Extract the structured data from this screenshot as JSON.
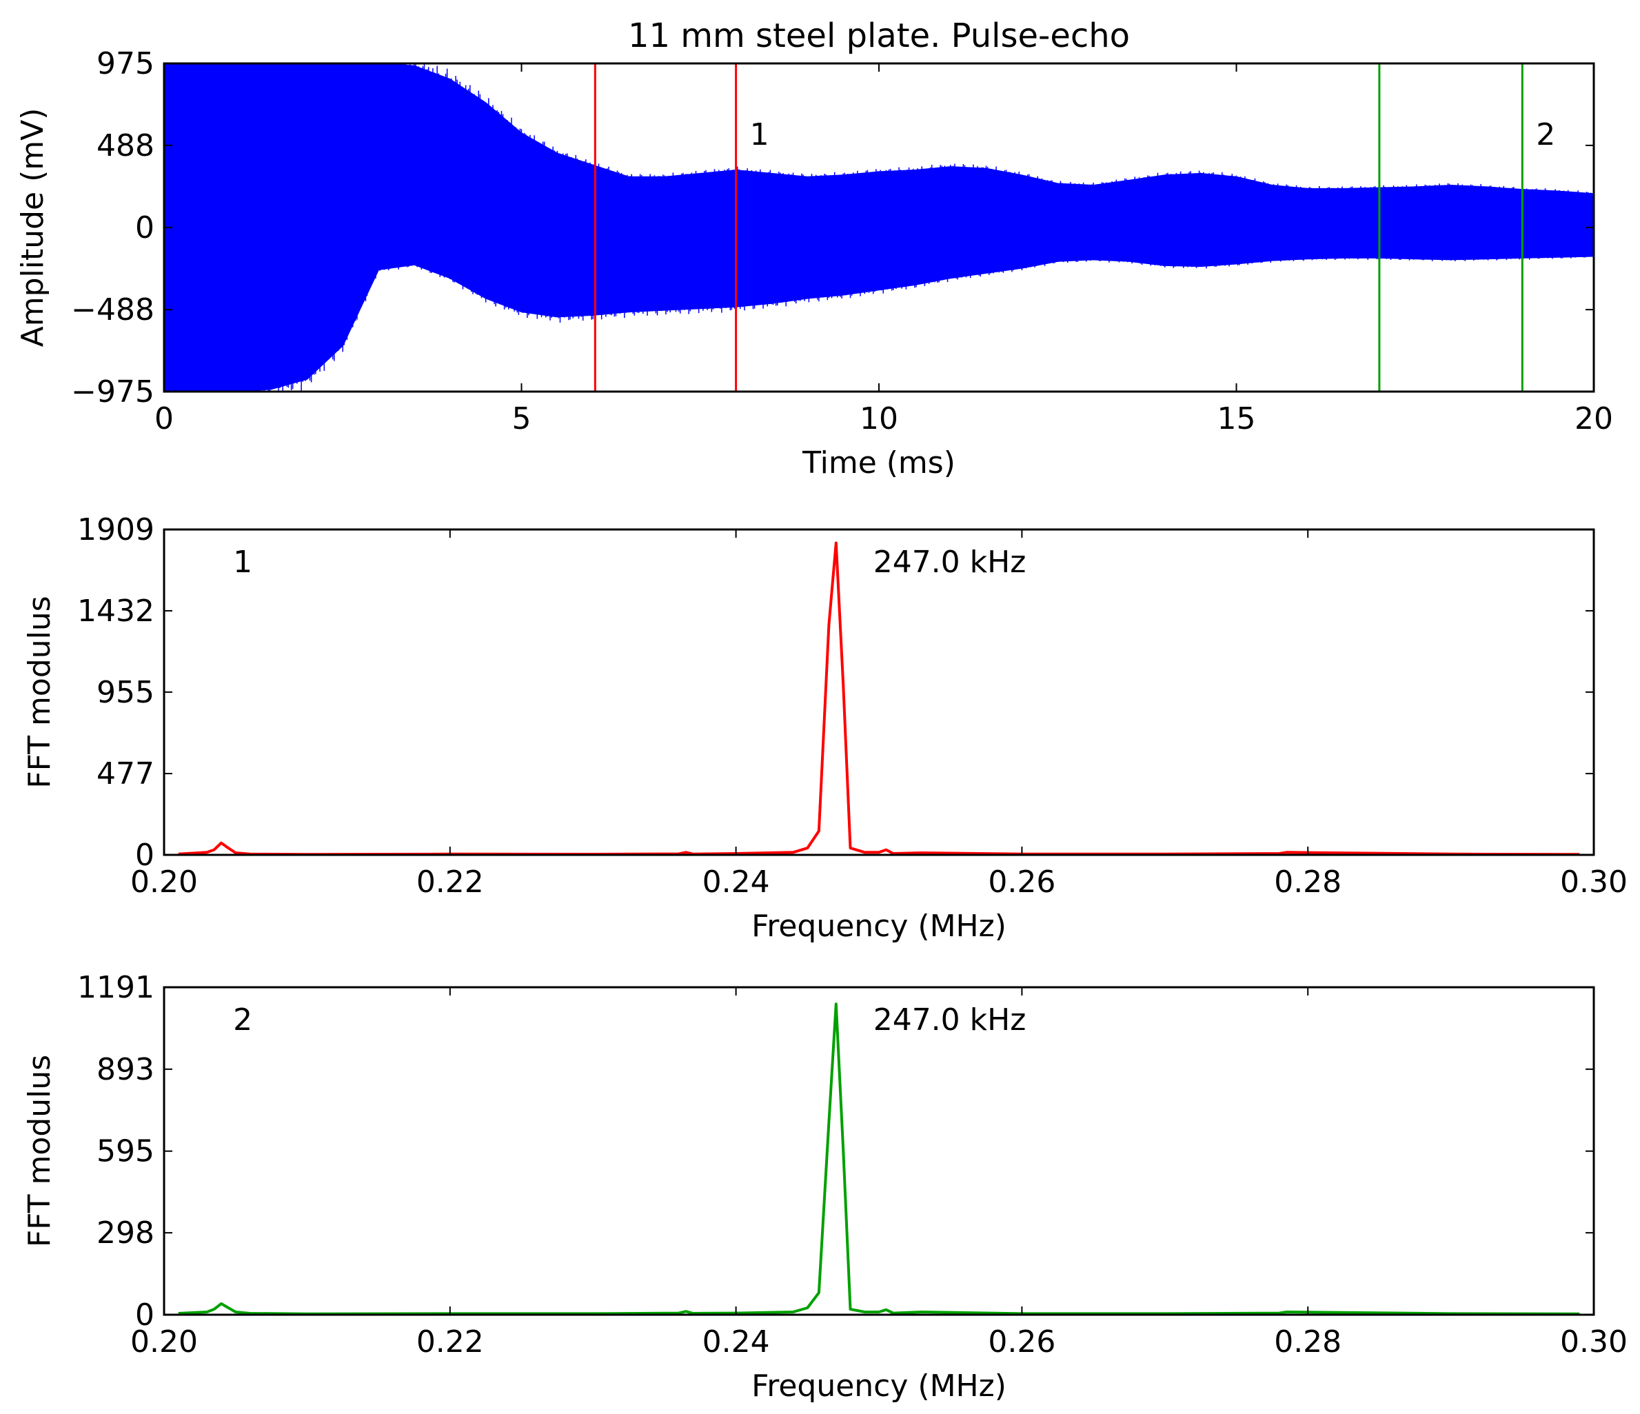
{
  "chart_data": [
    {
      "type": "area",
      "title": "11 mm steel plate. Pulse-echo",
      "xlabel": "Time (ms)",
      "ylabel": "Amplitude (mV)",
      "xlim": [
        0,
        20
      ],
      "ylim": [
        -975,
        975
      ],
      "xticks": [
        0,
        5,
        10,
        15,
        20
      ],
      "yticks": [
        -975,
        -488,
        0,
        488,
        975
      ],
      "ytick_labels": [
        "−975",
        "−488",
        "0",
        "488",
        "975"
      ],
      "grid": false,
      "signal_color": "#0000ff",
      "signal_envelope": {
        "x": [
          0,
          0.5,
          1.0,
          1.5,
          2.0,
          2.5,
          3.0,
          3.5,
          4.0,
          4.5,
          5.0,
          5.5,
          6.0,
          6.5,
          7.0,
          7.5,
          8.0,
          8.5,
          9.0,
          9.5,
          10.0,
          10.5,
          11.0,
          11.5,
          12.0,
          12.5,
          13.0,
          13.5,
          14.0,
          14.5,
          15.0,
          15.5,
          16.0,
          16.5,
          17.0,
          17.5,
          18.0,
          18.5,
          19.0,
          19.5,
          20.0
        ],
        "upper": [
          975,
          975,
          975,
          975,
          975,
          975,
          975,
          960,
          880,
          740,
          560,
          440,
          370,
          300,
          300,
          320,
          340,
          320,
          300,
          310,
          330,
          340,
          360,
          350,
          310,
          260,
          250,
          280,
          310,
          320,
          300,
          250,
          230,
          230,
          235,
          240,
          250,
          240,
          225,
          215,
          200
        ],
        "lower": [
          -975,
          -975,
          -975,
          -960,
          -900,
          -700,
          -250,
          -220,
          -300,
          -420,
          -500,
          -530,
          -520,
          -500,
          -490,
          -480,
          -470,
          -450,
          -420,
          -400,
          -370,
          -340,
          -300,
          -270,
          -240,
          -200,
          -190,
          -200,
          -225,
          -230,
          -215,
          -195,
          -185,
          -180,
          -180,
          -185,
          -190,
          -185,
          -180,
          -175,
          -170
        ]
      },
      "window_1": {
        "label": "1",
        "color": "#ff0000",
        "start": 6.03,
        "end": 8.0
      },
      "window_2": {
        "label": "2",
        "color": "#00a000",
        "start": 17.0,
        "end": 19.0
      }
    },
    {
      "type": "line",
      "xlabel": "Frequency (MHz)",
      "ylabel": "FFT modulus",
      "annotation": "1",
      "peak_label": "247.0 kHz",
      "color": "#ff0000",
      "xlim": [
        0.2,
        0.3
      ],
      "ylim": [
        0,
        1909
      ],
      "xticks": [
        0.2,
        0.22,
        0.24,
        0.26,
        0.28,
        0.3
      ],
      "xtick_labels": [
        "0.20",
        "0.22",
        "0.24",
        "0.26",
        "0.28",
        "0.30"
      ],
      "yticks": [
        0,
        477,
        955,
        1432,
        1909
      ],
      "grid": false,
      "x": [
        0.201,
        0.203,
        0.2035,
        0.204,
        0.2045,
        0.205,
        0.206,
        0.21,
        0.22,
        0.23,
        0.236,
        0.2365,
        0.237,
        0.24,
        0.244,
        0.245,
        0.2458,
        0.2465,
        0.247,
        0.2475,
        0.248,
        0.249,
        0.25,
        0.2505,
        0.251,
        0.253,
        0.26,
        0.27,
        0.278,
        0.2785,
        0.29,
        0.299
      ],
      "y": [
        5,
        15,
        30,
        70,
        40,
        12,
        5,
        3,
        5,
        4,
        6,
        15,
        5,
        8,
        15,
        40,
        140,
        1350,
        1830,
        1000,
        40,
        15,
        15,
        30,
        8,
        12,
        5,
        5,
        8,
        15,
        5,
        3
      ]
    },
    {
      "type": "line",
      "xlabel": "Frequency (MHz)",
      "ylabel": "FFT modulus",
      "annotation": "2",
      "peak_label": "247.0 kHz",
      "color": "#00a000",
      "xlim": [
        0.2,
        0.3
      ],
      "ylim": [
        0,
        1191
      ],
      "xticks": [
        0.2,
        0.22,
        0.24,
        0.26,
        0.28,
        0.3
      ],
      "xtick_labels": [
        "0.20",
        "0.22",
        "0.24",
        "0.26",
        "0.28",
        "0.30"
      ],
      "yticks": [
        0,
        298,
        595,
        893,
        1191
      ],
      "grid": false,
      "x": [
        0.201,
        0.203,
        0.2035,
        0.204,
        0.2045,
        0.205,
        0.206,
        0.21,
        0.22,
        0.23,
        0.236,
        0.2365,
        0.237,
        0.24,
        0.244,
        0.245,
        0.2458,
        0.2465,
        0.247,
        0.2475,
        0.248,
        0.249,
        0.25,
        0.2505,
        0.251,
        0.253,
        0.26,
        0.27,
        0.278,
        0.2785,
        0.29,
        0.299
      ],
      "y": [
        5,
        10,
        20,
        40,
        25,
        10,
        5,
        3,
        4,
        4,
        6,
        12,
        5,
        6,
        10,
        25,
        80,
        700,
        1130,
        600,
        20,
        10,
        10,
        18,
        6,
        10,
        4,
        4,
        6,
        10,
        4,
        3
      ]
    }
  ]
}
